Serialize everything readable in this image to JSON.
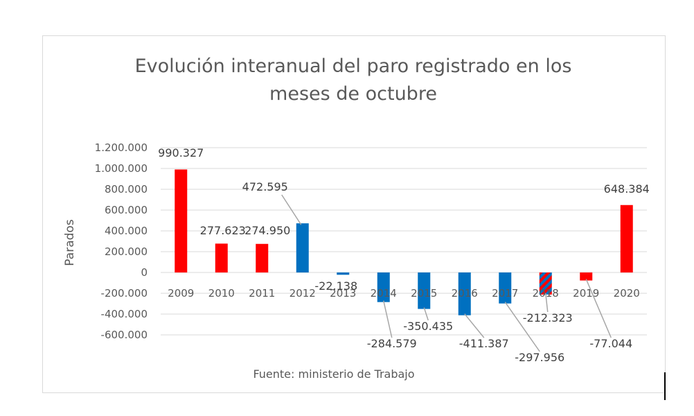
{
  "chart_data": {
    "type": "bar",
    "title_lines": [
      "Evolución interanual del paro registrado en los",
      "meses de octubre"
    ],
    "ylabel": "Parados",
    "xlabel": "",
    "source": "Fuente: ministerio de Trabajo",
    "ylim": [
      -600000,
      1200000
    ],
    "yticks": [
      1200000,
      1000000,
      800000,
      600000,
      400000,
      200000,
      0,
      -200000,
      -400000,
      -600000
    ],
    "ytick_labels": [
      "1.200.000",
      "1.000.000",
      "800.000",
      "600.000",
      "400.000",
      "200.000",
      "0",
      "-200.000",
      "-400.000",
      "-600.000"
    ],
    "grid": true,
    "categories": [
      "2009",
      "2010",
      "2011",
      "2012",
      "2013",
      "2014",
      "2015",
      "2016",
      "2017",
      "2018",
      "2019",
      "2020"
    ],
    "values": [
      990327,
      277623,
      274950,
      472595,
      -22138,
      -284579,
      -350435,
      -411387,
      -297956,
      -212323,
      -77044,
      648384
    ],
    "data_labels": [
      "990.327",
      "277.623",
      "274.950",
      "472.595",
      "-22.138",
      "-284.579",
      "-350.435",
      "-411.387",
      "-297.956",
      "-212.323",
      "-77.044",
      "648.384"
    ],
    "bar_styles": [
      "red",
      "red",
      "red",
      "blue",
      "blue",
      "blue",
      "blue",
      "blue",
      "blue",
      "hatched",
      "red",
      "red"
    ],
    "colors": {
      "red": "#ff0000",
      "blue": "#0070c0",
      "grid": "#d9d9d9",
      "text": "#595959",
      "leader": "#a6a6a6"
    }
  }
}
